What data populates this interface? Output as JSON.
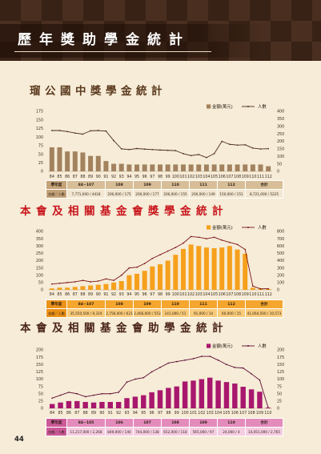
{
  "page": {
    "title": "歷年獎助學金統計",
    "page_number": "44"
  },
  "tables": [
    {
      "header": [
        "學年度",
        "84~107",
        "108",
        "109",
        "110",
        "111",
        "112",
        "合計"
      ],
      "row": [
        "金額／人數",
        "7,771,000 / 4418",
        "200,000 / 175",
        "200,000 / 177",
        "200,000 / 155",
        "200,000 / 149",
        "150,000 / 151",
        "8,721,000 / 5225"
      ]
    },
    {
      "header": [
        "學年度",
        "84~107",
        "108",
        "109",
        "110",
        "111",
        "112",
        "合計"
      ],
      "row": [
        "金額／人數",
        "35,550,500 / 9,319",
        "2,756,000 / 621",
        "2,466,000 / 553",
        "141,000 / 51",
        "91,000 / 14",
        "60,000 / 15",
        "41,064,500 / 10,573"
      ]
    },
    {
      "header": [
        "學年度",
        "84~105",
        "106",
        "107",
        "108",
        "109",
        "110",
        "合計"
      ],
      "row": [
        "金額／人數",
        "11,217,000 / 2,268",
        "849,000 / 140",
        "744,000 / 138",
        "652,000 / 118",
        "565,000 / 97",
        "24,000 / 4",
        "14,051,000 / 2,765"
      ]
    }
  ],
  "chart_data": [
    {
      "type": "bar",
      "title": "瑠公國中獎學金統計",
      "categories": [
        "84",
        "85",
        "86",
        "87",
        "88",
        "89",
        "90",
        "91",
        "92",
        "93",
        "94",
        "95",
        "96",
        "97",
        "98",
        "99",
        "100",
        "101",
        "102",
        "103",
        "104",
        "105",
        "106",
        "107",
        "108",
        "109",
        "110",
        "111",
        "112"
      ],
      "series": [
        {
          "name": "金額(萬元)",
          "type": "bar",
          "y_axis": "left",
          "color": "#a3825e",
          "values": [
            70,
            70,
            58,
            58,
            55,
            45,
            45,
            30,
            22,
            22,
            20,
            20,
            20,
            20,
            20,
            20,
            20,
            20,
            20,
            20,
            20,
            20,
            20,
            20,
            20,
            20,
            20,
            20,
            15
          ]
        },
        {
          "name": "人數",
          "type": "line",
          "y_axis": "right",
          "color": "#4a2c1a",
          "values": [
            272,
            272,
            265,
            255,
            248,
            270,
            272,
            268,
            205,
            150,
            145,
            152,
            148,
            145,
            142,
            140,
            138,
            118,
            105,
            112,
            92,
            118,
            200,
            180,
            175,
            177,
            155,
            149,
            151
          ]
        }
      ],
      "y_left_range": [
        0,
        175
      ],
      "y_left_ticks": [
        0,
        25,
        50,
        75,
        100,
        125,
        150,
        175
      ],
      "y_right_range": [
        0,
        400
      ],
      "y_right_ticks": [
        0,
        50,
        100,
        150,
        200,
        250,
        300,
        350,
        400
      ],
      "legend": "top-right",
      "grid": false
    },
    {
      "type": "bar",
      "title": "本會及相關基金會獎學金統計",
      "categories": [
        "84",
        "85",
        "86",
        "87",
        "88",
        "89",
        "90",
        "91",
        "92",
        "93",
        "94",
        "95",
        "96",
        "97",
        "98",
        "99",
        "100",
        "101",
        "102",
        "103",
        "104",
        "105",
        "106",
        "107",
        "108",
        "109",
        "110",
        "111",
        "112"
      ],
      "series": [
        {
          "name": "金額(萬元)",
          "type": "bar",
          "y_axis": "left",
          "color": "#f6a01c",
          "values": [
            10,
            15,
            15,
            20,
            25,
            30,
            35,
            40,
            50,
            60,
            100,
            110,
            130,
            160,
            175,
            200,
            240,
            280,
            310,
            300,
            290,
            285,
            290,
            300,
            276,
            247,
            14,
            9,
            6
          ]
        },
        {
          "name": "人數",
          "type": "line",
          "y_axis": "right",
          "color": "#7d1518",
          "values": [
            80,
            90,
            100,
            110,
            130,
            110,
            120,
            150,
            130,
            200,
            300,
            310,
            360,
            430,
            480,
            530,
            580,
            640,
            730,
            720,
            700,
            720,
            680,
            650,
            621,
            553,
            51,
            14,
            15
          ]
        }
      ],
      "y_left_range": [
        0,
        400
      ],
      "y_left_ticks": [
        0,
        50,
        100,
        150,
        200,
        250,
        300,
        350,
        400
      ],
      "y_right_range": [
        0,
        800
      ],
      "y_right_ticks": [
        0,
        100,
        200,
        300,
        400,
        500,
        600,
        700,
        800
      ],
      "legend": "top-right",
      "grid": false
    },
    {
      "type": "bar",
      "title": "本會及相關基金會助學金統計",
      "categories": [
        "84",
        "85",
        "86",
        "87",
        "88",
        "89",
        "90",
        "91",
        "92",
        "93",
        "94",
        "95",
        "96",
        "97",
        "98",
        "99",
        "100",
        "101",
        "102",
        "103",
        "104",
        "105",
        "106",
        "107",
        "108",
        "109",
        "110"
      ],
      "series": [
        {
          "name": "金額(萬元)",
          "type": "bar",
          "y_axis": "left",
          "color": "#a8176d",
          "values": [
            15,
            20,
            25,
            25,
            22,
            20,
            22,
            22,
            22,
            35,
            40,
            45,
            55,
            62,
            70,
            75,
            92,
            95,
            100,
            105,
            95,
            90,
            85,
            74,
            65,
            57,
            2.4
          ]
        },
        {
          "name": "人數",
          "type": "line",
          "y_axis": "right",
          "color": "#5e0b35",
          "values": [
            35,
            45,
            55,
            50,
            40,
            45,
            50,
            50,
            55,
            90,
            100,
            105,
            125,
            140,
            155,
            160,
            165,
            170,
            178,
            178,
            165,
            150,
            140,
            138,
            118,
            97,
            4
          ]
        }
      ],
      "y_left_range": [
        0,
        200
      ],
      "y_left_ticks": [
        0,
        25,
        50,
        75,
        100,
        125,
        150,
        175,
        200
      ],
      "y_right_range": [
        0,
        200
      ],
      "y_right_ticks": [
        0,
        25,
        50,
        75,
        100,
        125,
        150,
        175,
        200
      ],
      "legend": "top-right",
      "grid": false
    }
  ]
}
